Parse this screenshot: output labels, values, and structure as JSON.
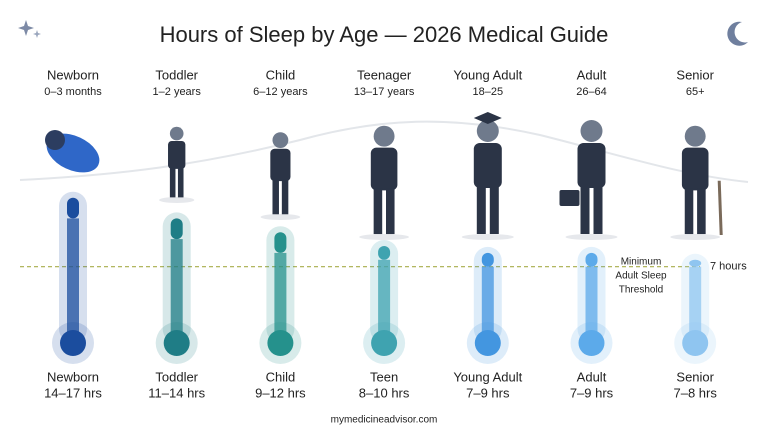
{
  "chart_data": {
    "type": "thermometer",
    "title": "Hours of Sleep by Age — 2026 Medical Guide",
    "categories": [
      "Newborn",
      "Toddler",
      "Child",
      "Teenager",
      "Young Adult",
      "Adult",
      "Senior"
    ],
    "age_ranges": [
      "0–3 months",
      "1–2 years",
      "6–12 years",
      "13–17 years",
      "18–25",
      "26–64",
      "65+"
    ],
    "short_names": [
      "Newborn",
      "Toddler",
      "Child",
      "Teen",
      "Young Adult",
      "Adult",
      "Senior"
    ],
    "values": [
      [
        14,
        17
      ],
      [
        11,
        14
      ],
      [
        9,
        12
      ],
      [
        8,
        10
      ],
      [
        7,
        9
      ],
      [
        7,
        9
      ],
      [
        7,
        8
      ]
    ],
    "value_labels": [
      "14–17 hrs",
      "11–14 hrs",
      "9–12 hrs",
      "8–10 hrs",
      "7–9 hrs",
      "7–9 hrs",
      "7–8 hrs"
    ],
    "colors": [
      "#1b4d9e",
      "#1f7d86",
      "#25918c",
      "#3fa3b0",
      "#4396e0",
      "#5caaea",
      "#8fc5f0"
    ],
    "threshold": {
      "value": 7,
      "label": "7 hours"
    },
    "threshold_note": [
      "Minimum",
      "Adult Sleep",
      "Threshold"
    ],
    "threshold_color": "#a7ad4a",
    "source": "mymedicineadvisor.com"
  }
}
